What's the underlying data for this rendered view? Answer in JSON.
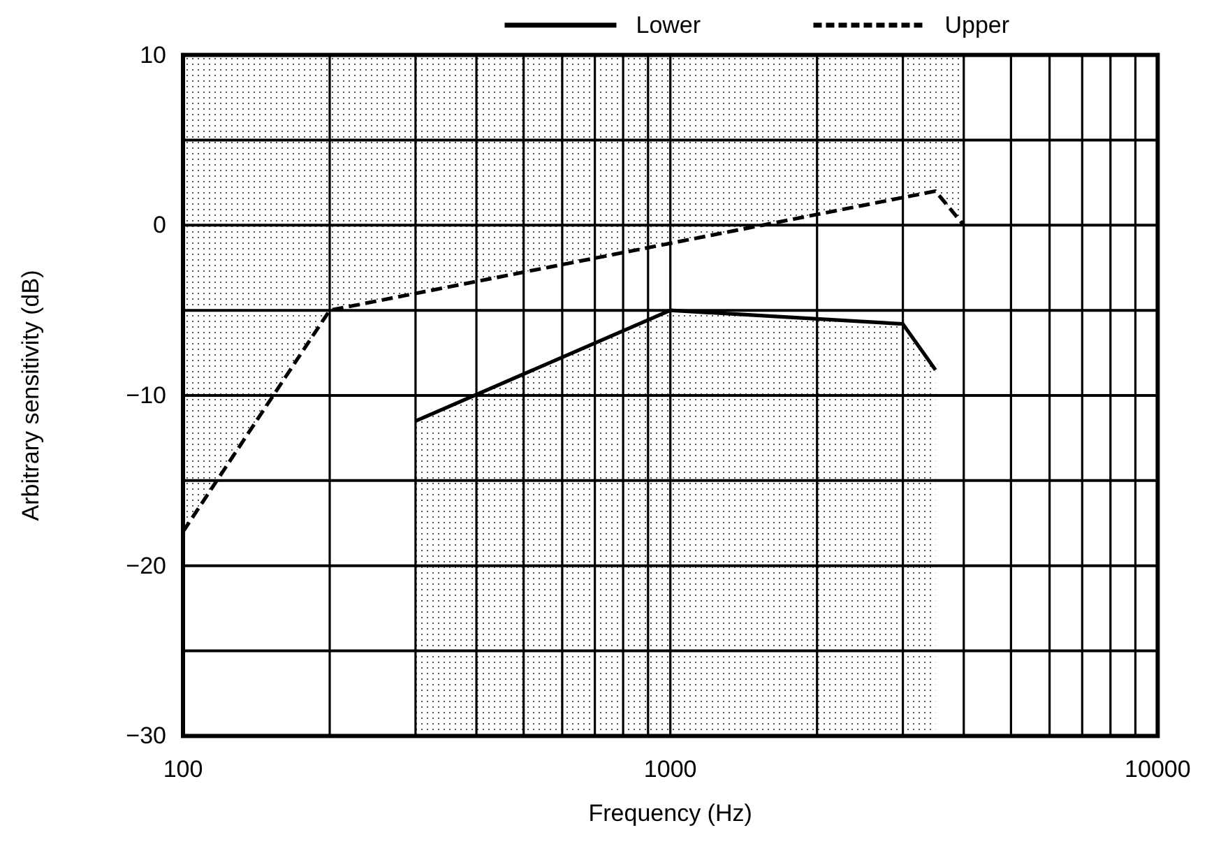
{
  "chart_data": {
    "type": "line",
    "xlabel": "Frequency (Hz)",
    "ylabel": "Arbitrary sensitivity (dB)",
    "log": "x",
    "xlim": [
      100,
      10000
    ],
    "ylim": [
      -30,
      10
    ],
    "xticks": [
      100,
      {
        "value": 200,
        "label": null
      },
      {
        "value": 300,
        "label": null
      },
      {
        "value": 400,
        "label": null
      },
      {
        "value": 500,
        "label": null
      },
      {
        "value": 600,
        "label": null
      },
      {
        "value": 700,
        "label": null
      },
      {
        "value": 800,
        "label": null
      },
      {
        "value": 900,
        "label": null
      },
      1000,
      {
        "value": 2000,
        "label": null
      },
      {
        "value": 3000,
        "label": null
      },
      {
        "value": 4000,
        "label": null
      },
      {
        "value": 5000,
        "label": null
      },
      {
        "value": 6000,
        "label": null
      },
      {
        "value": 7000,
        "label": null
      },
      {
        "value": 8000,
        "label": null
      },
      {
        "value": 9000,
        "label": null
      },
      10000
    ],
    "yticks": [
      10,
      {
        "value": 5,
        "label": null
      },
      0,
      {
        "value": -5,
        "label": null
      },
      -10,
      {
        "value": -15,
        "label": null
      },
      -20,
      {
        "value": -25,
        "label": null
      },
      -30
    ],
    "grid": true,
    "legend": "top",
    "series": [
      {
        "name": "Lower",
        "color": "#000000",
        "line_style": "solid",
        "x": [
          300,
          1000,
          3000,
          3500
        ],
        "values": [
          -11.5,
          -5,
          -5.8,
          -8.5
        ],
        "lower": [
          -30,
          -30,
          -30,
          -30
        ],
        "upper": [
          -11.5,
          -5,
          -5.8,
          -8.5
        ]
      },
      {
        "name": "Upper",
        "color": "#000000",
        "line_style": "dashed",
        "x": [
          100,
          200,
          3500,
          4000
        ],
        "values": [
          -18,
          -5,
          2,
          0
        ],
        "lower": [
          -18,
          -5,
          2,
          0
        ],
        "upper": [
          10,
          10,
          10,
          10
        ]
      }
    ]
  }
}
